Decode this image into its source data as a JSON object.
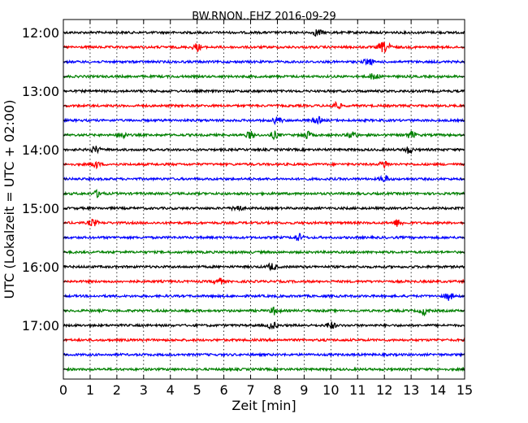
{
  "chart_data": {
    "type": "line",
    "title": "BW.RNON..EHZ 2016-09-29",
    "xlabel": "Zeit  [min]",
    "ylabel": "UTC (Lokalzeit = UTC + 02:00)",
    "xlim": [
      0,
      15
    ],
    "x_ticks": [
      "0",
      "1",
      "2",
      "3",
      "4",
      "5",
      "6",
      "7",
      "8",
      "9",
      "10",
      "11",
      "12",
      "13",
      "14",
      "15"
    ],
    "y_tick_labels": [
      "12:00",
      "13:00",
      "14:00",
      "15:00",
      "16:00",
      "17:00"
    ],
    "grid": "vertical-dotted",
    "trace_interval_min": 15,
    "trace_colors": [
      "#000000",
      "#ff0000",
      "#0000ff",
      "#008000"
    ],
    "series": [
      {
        "start": "12:00",
        "events_min": [
          9.5
        ]
      },
      {
        "start": "12:15",
        "events_min": [
          5.0,
          11.9,
          12.1
        ]
      },
      {
        "start": "12:30",
        "events_min": [
          11.4
        ]
      },
      {
        "start": "12:45",
        "events_min": [
          11.6
        ]
      },
      {
        "start": "13:00",
        "events_min": []
      },
      {
        "start": "13:15",
        "events_min": [
          10.2
        ]
      },
      {
        "start": "13:30",
        "events_min": [
          8.0,
          9.5
        ]
      },
      {
        "start": "13:45",
        "events_min": [
          2.2,
          7.0,
          7.9,
          9.1,
          10.8,
          13.0
        ]
      },
      {
        "start": "14:00",
        "events_min": [
          1.2,
          12.9
        ]
      },
      {
        "start": "14:15",
        "events_min": [
          1.2,
          12.0
        ]
      },
      {
        "start": "14:30",
        "events_min": [
          12.0
        ]
      },
      {
        "start": "14:45",
        "events_min": [
          1.3
        ]
      },
      {
        "start": "15:00",
        "events_min": [
          6.5
        ]
      },
      {
        "start": "15:15",
        "events_min": [
          1.1,
          12.5
        ]
      },
      {
        "start": "15:30",
        "events_min": [
          8.8
        ]
      },
      {
        "start": "15:45",
        "events_min": []
      },
      {
        "start": "16:00",
        "events_min": [
          7.8
        ]
      },
      {
        "start": "16:15",
        "events_min": [
          5.8
        ]
      },
      {
        "start": "16:30",
        "events_min": [
          14.4
        ]
      },
      {
        "start": "16:45",
        "events_min": [
          7.9,
          13.5
        ]
      },
      {
        "start": "17:00",
        "events_min": [
          7.8,
          10.0
        ]
      },
      {
        "start": "17:15",
        "events_min": []
      },
      {
        "start": "17:30",
        "events_min": []
      },
      {
        "start": "17:45",
        "events_min": []
      }
    ]
  }
}
